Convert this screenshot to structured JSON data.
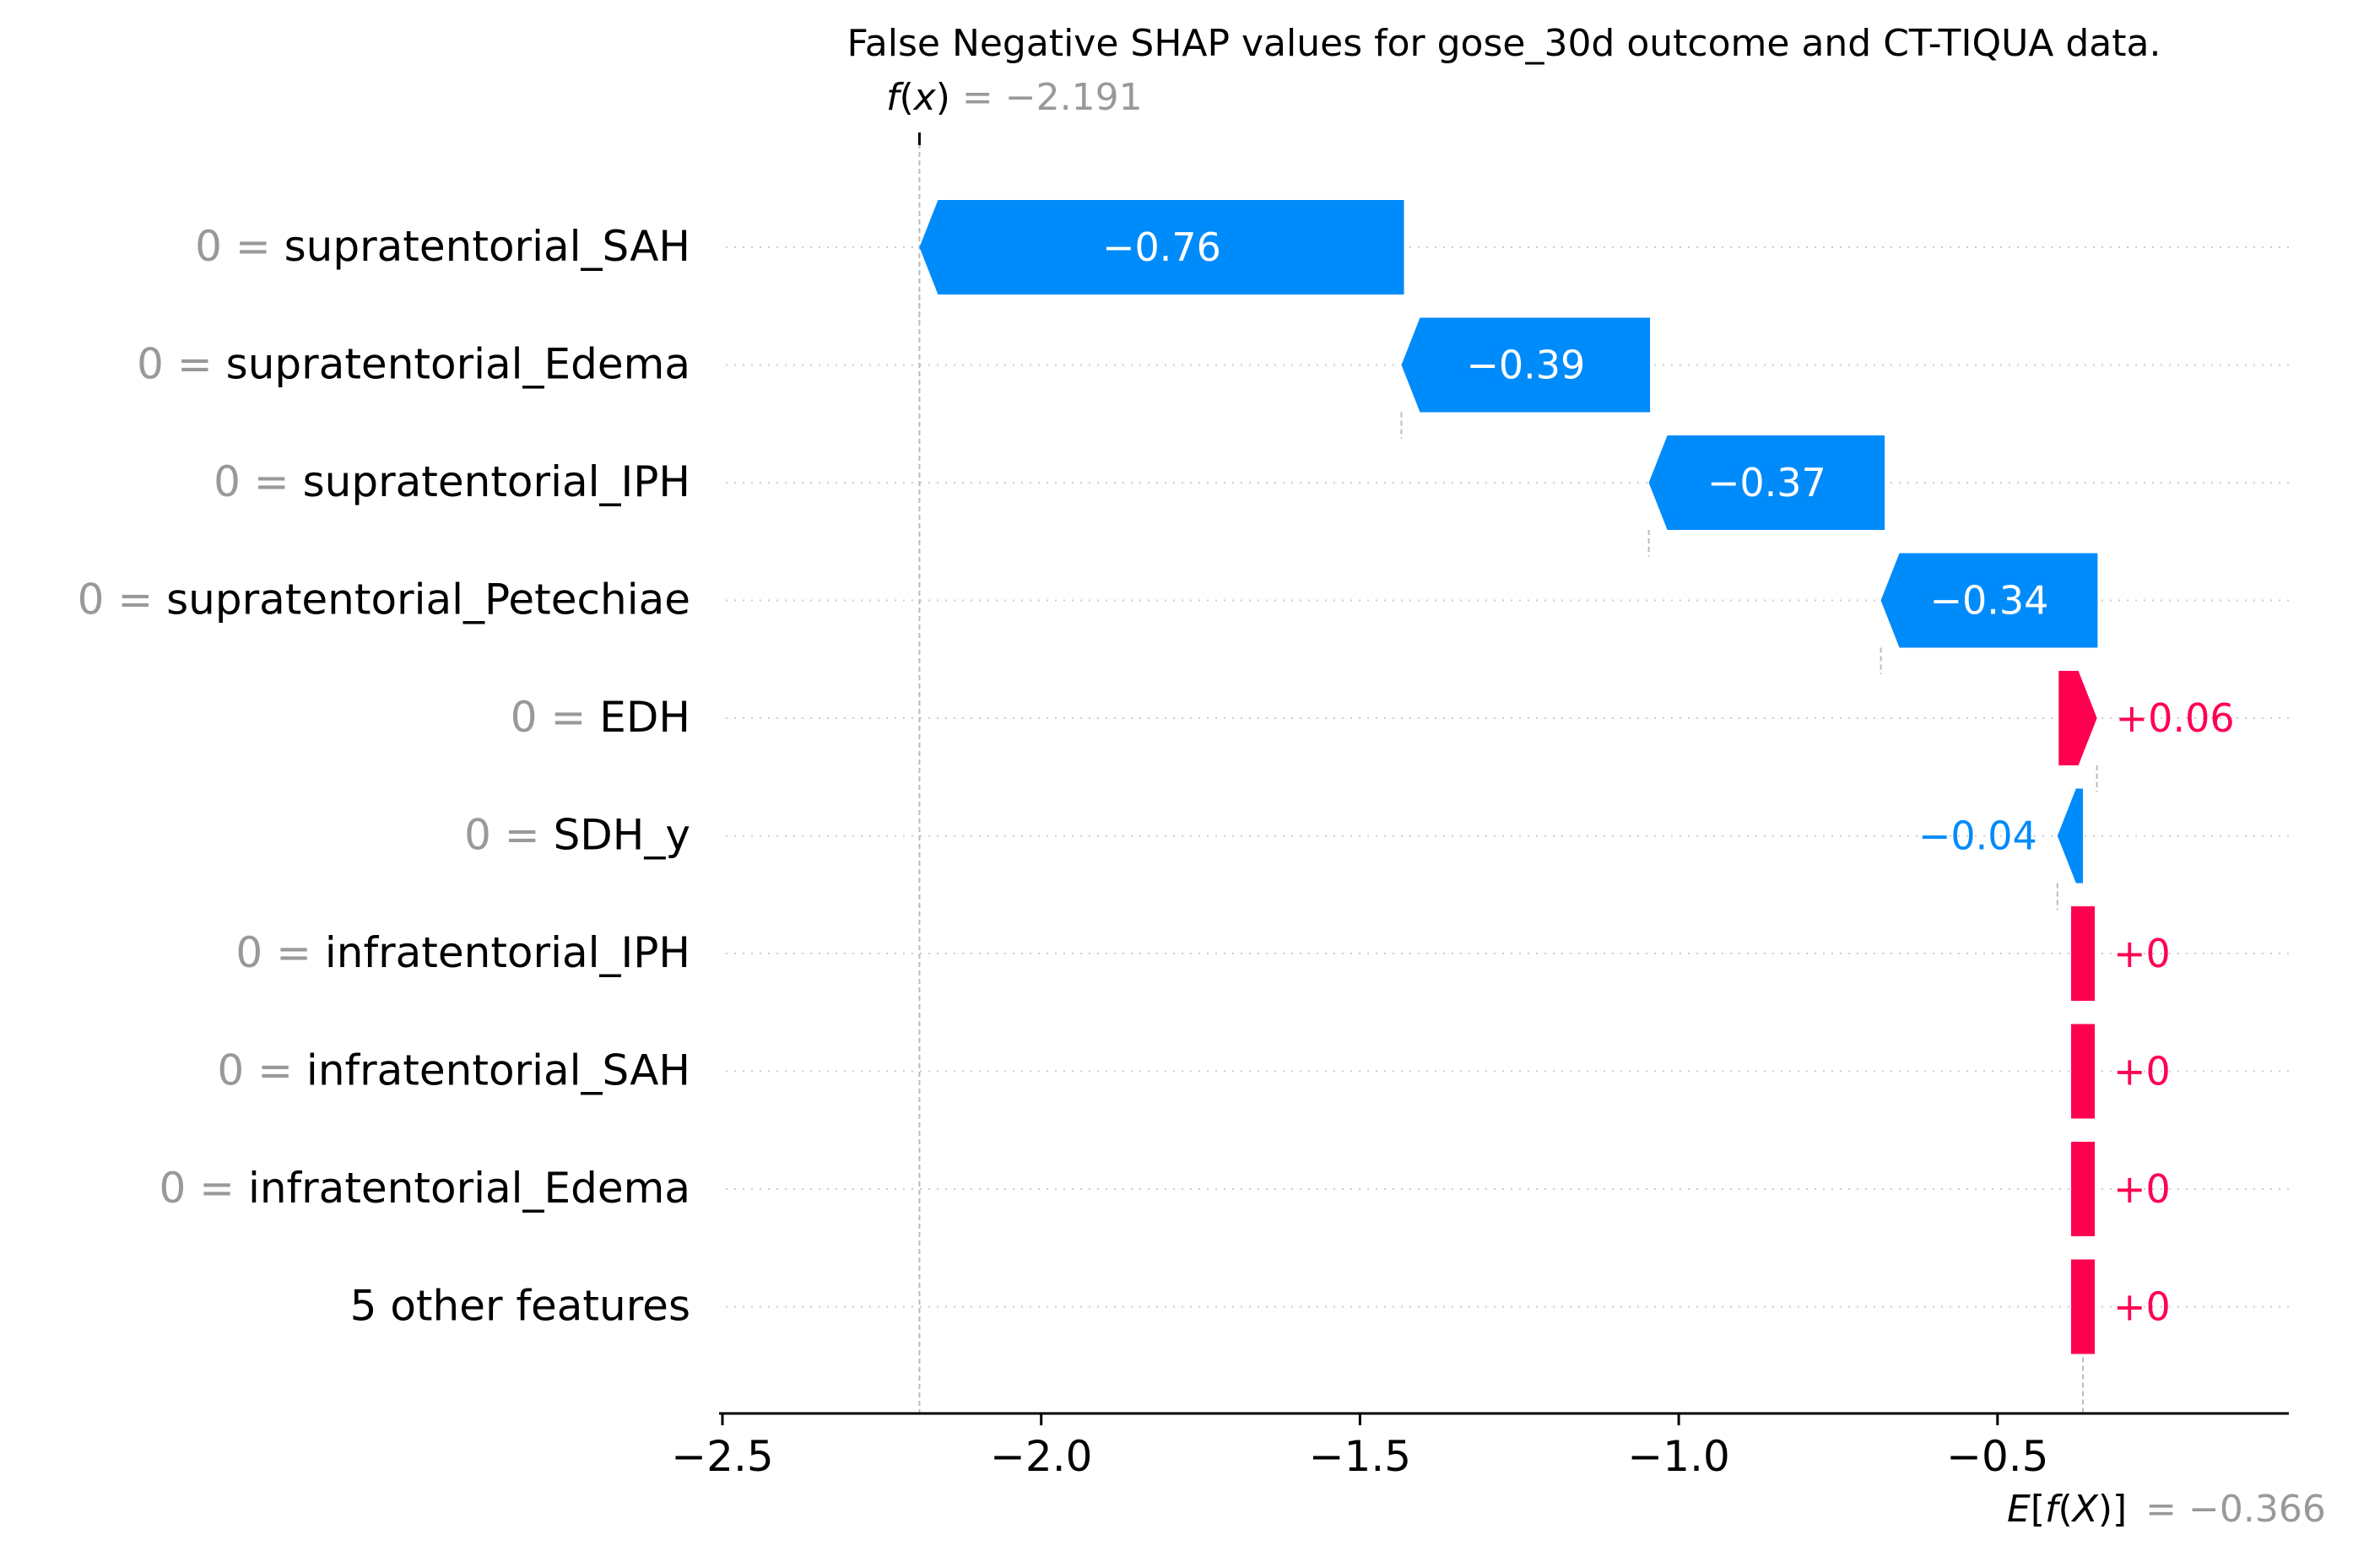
{
  "chart_data": {
    "type": "waterfall",
    "title": "False Negative SHAP values for gose_30d outcome and CT-TIQUA data.",
    "fx": {
      "label_prefix": "f",
      "label_var": "x",
      "value_text": "= −2.191",
      "value": -2.191
    },
    "efx": {
      "label_prefix": "E",
      "label_inner": "f",
      "label_var": "X",
      "value_text": "= −0.366",
      "value": -0.366
    },
    "xlim": [
      -2.5,
      -0.05
    ],
    "xticks": [
      -2.5,
      -2.0,
      -1.5,
      -1.0,
      -0.5
    ],
    "xtick_labels": [
      "−2.5",
      "−2.0",
      "−1.5",
      "−1.0",
      "−0.5"
    ],
    "features": [
      {
        "value_prefix": "0 =",
        "name": "supratentorial_SAH",
        "shap": -0.76,
        "label": "−0.76",
        "start": -1.431
      },
      {
        "value_prefix": "0 =",
        "name": "supratentorial_Edema",
        "shap": -0.39,
        "label": "−0.39",
        "start": -1.045
      },
      {
        "value_prefix": "0 =",
        "name": "supratentorial_IPH",
        "shap": -0.37,
        "label": "−0.37",
        "start": -0.677
      },
      {
        "value_prefix": "0 =",
        "name": "supratentorial_Petechiae",
        "shap": -0.34,
        "label": "−0.34",
        "start": -0.343
      },
      {
        "value_prefix": "0 =",
        "name": "EDH",
        "shap": 0.06,
        "label": "+0.06",
        "start": -0.404
      },
      {
        "value_prefix": "0 =",
        "name": "SDH_y",
        "shap": -0.04,
        "label": "−0.04",
        "start": -0.366
      },
      {
        "value_prefix": "0 =",
        "name": "infratentorial_IPH",
        "shap": 0.0,
        "label": "+0",
        "start": -0.366
      },
      {
        "value_prefix": "0 =",
        "name": "infratentorial_SAH",
        "shap": 0.0,
        "label": "+0",
        "start": -0.366
      },
      {
        "value_prefix": "0 =",
        "name": "infratentorial_Edema",
        "shap": 0.0,
        "label": "+0",
        "start": -0.366
      },
      {
        "value_prefix": "",
        "name": "5 other features",
        "shap": 0.0,
        "label": "+0",
        "start": -0.366
      }
    ],
    "colors": {
      "negative": "#008bfb",
      "positive": "#ff0051",
      "muted": "#999999",
      "text": "#000000",
      "grid": "#cccccc"
    }
  }
}
